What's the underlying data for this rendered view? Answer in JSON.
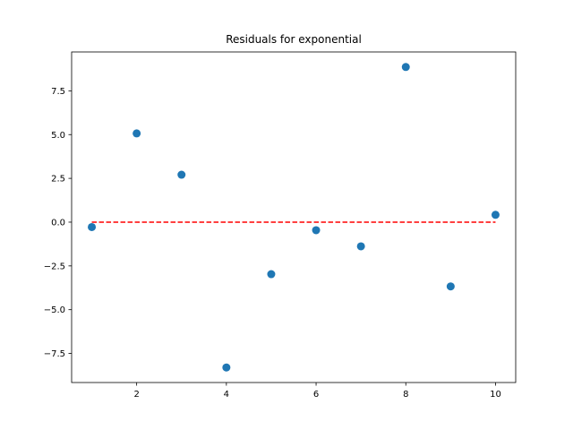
{
  "chart_data": {
    "type": "scatter",
    "title": "Residuals for exponential",
    "xlabel": "",
    "ylabel": "",
    "xlim": [
      0.55,
      10.45
    ],
    "ylim": [
      -9.16,
      9.72
    ],
    "xticks": [
      2,
      4,
      6,
      8,
      10
    ],
    "yticks": [
      -7.5,
      -5.0,
      -2.5,
      0.0,
      2.5,
      5.0,
      7.5
    ],
    "ytick_labels": [
      "−7.5",
      "−5.0",
      "−2.5",
      "0.0",
      "2.5",
      "5.0",
      "7.5"
    ],
    "grid": false,
    "series": [
      {
        "x": [
          1,
          2,
          3,
          4,
          5,
          6,
          7,
          8,
          9,
          10
        ],
        "y": [
          -0.28,
          5.07,
          2.71,
          -8.3,
          -2.97,
          -0.46,
          -1.38,
          8.86,
          -3.67,
          0.42
        ],
        "color": "#1f77b4"
      }
    ],
    "reference_line": {
      "y": 0,
      "x_from": 1,
      "x_to": 10,
      "color": "#ff0000",
      "style": "dashed"
    }
  }
}
